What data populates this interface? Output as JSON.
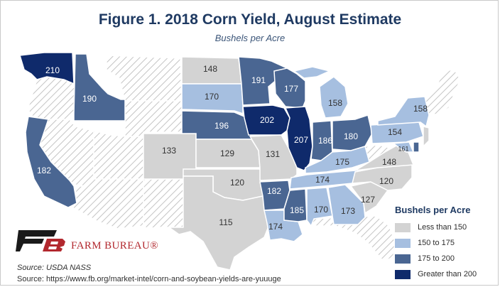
{
  "title": "Figure 1. 2018 Corn Yield, August Estimate",
  "subtitle": "Bushels per Acre",
  "colors": {
    "less_than_150": "#d3d3d3",
    "150_to_175": "#a6bfe0",
    "175_to_200": "#4a6692",
    "greater_than_200": "#0f2a6b",
    "hatched_no_data": "#ffffff",
    "brand_red": "#b2282e",
    "title_navy": "#1f3a62"
  },
  "legend": {
    "title": "Bushels per Acre",
    "items": [
      {
        "label": "Less than 150",
        "color": "#d3d3d3"
      },
      {
        "label": "150 to 175",
        "color": "#a6bfe0"
      },
      {
        "label": "175 to 200",
        "color": "#4a6692"
      },
      {
        "label": "Greater than 200",
        "color": "#0f2a6b"
      }
    ]
  },
  "states": [
    {
      "id": "WA",
      "value": "210",
      "category": "greater_than_200"
    },
    {
      "id": "ID",
      "value": "190",
      "category": "175_to_200"
    },
    {
      "id": "CA",
      "value": "182",
      "category": "175_to_200"
    },
    {
      "id": "CO",
      "value": "133",
      "category": "less_than_150"
    },
    {
      "id": "ND",
      "value": "148",
      "category": "less_than_150"
    },
    {
      "id": "SD",
      "value": "170",
      "category": "150_to_175"
    },
    {
      "id": "NE",
      "value": "196",
      "category": "175_to_200"
    },
    {
      "id": "KS",
      "value": "129",
      "category": "less_than_150"
    },
    {
      "id": "OK",
      "value": "120",
      "category": "less_than_150"
    },
    {
      "id": "TX",
      "value": "115",
      "category": "less_than_150"
    },
    {
      "id": "MN",
      "value": "191",
      "category": "175_to_200"
    },
    {
      "id": "IA",
      "value": "202",
      "category": "greater_than_200"
    },
    {
      "id": "MO",
      "value": "131",
      "category": "less_than_150"
    },
    {
      "id": "AR",
      "value": "182",
      "category": "175_to_200"
    },
    {
      "id": "LA",
      "value": "174",
      "category": "150_to_175"
    },
    {
      "id": "WI",
      "value": "177",
      "category": "175_to_200"
    },
    {
      "id": "IL",
      "value": "207",
      "category": "greater_than_200"
    },
    {
      "id": "MI",
      "value": "158",
      "category": "150_to_175"
    },
    {
      "id": "IN",
      "value": "186",
      "category": "175_to_200"
    },
    {
      "id": "OH",
      "value": "180",
      "category": "175_to_200"
    },
    {
      "id": "KY",
      "value": "175",
      "category": "150_to_175"
    },
    {
      "id": "TN",
      "value": "174",
      "category": "150_to_175"
    },
    {
      "id": "MS",
      "value": "185",
      "category": "175_to_200"
    },
    {
      "id": "AL",
      "value": "170",
      "category": "150_to_175"
    },
    {
      "id": "GA",
      "value": "173",
      "category": "150_to_175"
    },
    {
      "id": "SC",
      "value": "127",
      "category": "less_than_150"
    },
    {
      "id": "NC",
      "value": "120",
      "category": "less_than_150"
    },
    {
      "id": "VA",
      "value": "148",
      "category": "less_than_150"
    },
    {
      "id": "PA",
      "value": "154",
      "category": "150_to_175"
    },
    {
      "id": "NY",
      "value": "158",
      "category": "150_to_175"
    },
    {
      "id": "MD",
      "value": "161",
      "category": "150_to_175"
    },
    {
      "id": "DE",
      "value": "",
      "category": "175_to_200"
    }
  ],
  "brand": "FARM BUREAU®",
  "source_primary": "Source: USDA NASS",
  "source_secondary": "Source: https://www.fb.org/market-intel/corn-and-soybean-yields-are-yuuuge"
}
